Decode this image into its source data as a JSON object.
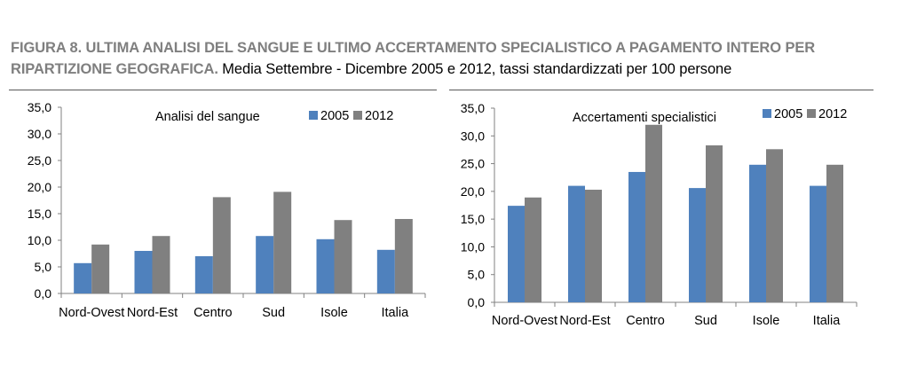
{
  "figure": {
    "title_prefix": "FIGURA 8. ULTIMA ANALISI DEL SANGUE E ULTIMO ACCERTAMENTO SPECIALISTICO A PAGAMENTO INTERO PER RIPARTIZIONE GEOGRAFICA.",
    "title_rest": "Media Settembre - Dicembre 2005 e 2012, tassi standardizzati per 100 persone"
  },
  "colors": {
    "series_2005": "#4f81bd",
    "series_2012": "#808080",
    "axis": "#808080",
    "title_prefix": "#7f7f7f"
  },
  "chart_data": [
    {
      "type": "bar",
      "title": "Analisi del sangue",
      "categories": [
        "Nord-Ovest",
        "Nord-Est",
        "Centro",
        "Sud",
        "Isole",
        "Italia"
      ],
      "series": [
        {
          "name": "2005",
          "values": [
            5.7,
            8.0,
            7.0,
            10.8,
            10.2,
            8.2
          ]
        },
        {
          "name": "2012",
          "values": [
            9.2,
            10.8,
            18.1,
            19.1,
            13.8,
            14.0
          ]
        }
      ],
      "ylim": [
        0,
        35
      ],
      "yticks": [
        "0,0",
        "5,0",
        "10,0",
        "15,0",
        "20,0",
        "25,0",
        "30,0",
        "35,0"
      ],
      "legend": "top-right",
      "grid": false
    },
    {
      "type": "bar",
      "title": "Accertamenti specialistici",
      "categories": [
        "Nord-Ovest",
        "Nord-Est",
        "Centro",
        "Sud",
        "Isole",
        "Italia"
      ],
      "series": [
        {
          "name": "2005",
          "values": [
            17.4,
            21.0,
            23.5,
            20.6,
            24.8,
            21.0
          ]
        },
        {
          "name": "2012",
          "values": [
            18.9,
            20.3,
            32.0,
            28.3,
            27.6,
            24.8
          ]
        }
      ],
      "ylim": [
        0,
        35
      ],
      "yticks": [
        "0,0",
        "5,0",
        "10,0",
        "15,0",
        "20,0",
        "25,0",
        "30,0",
        "35,0"
      ],
      "legend": "top-right",
      "grid": false
    }
  ]
}
